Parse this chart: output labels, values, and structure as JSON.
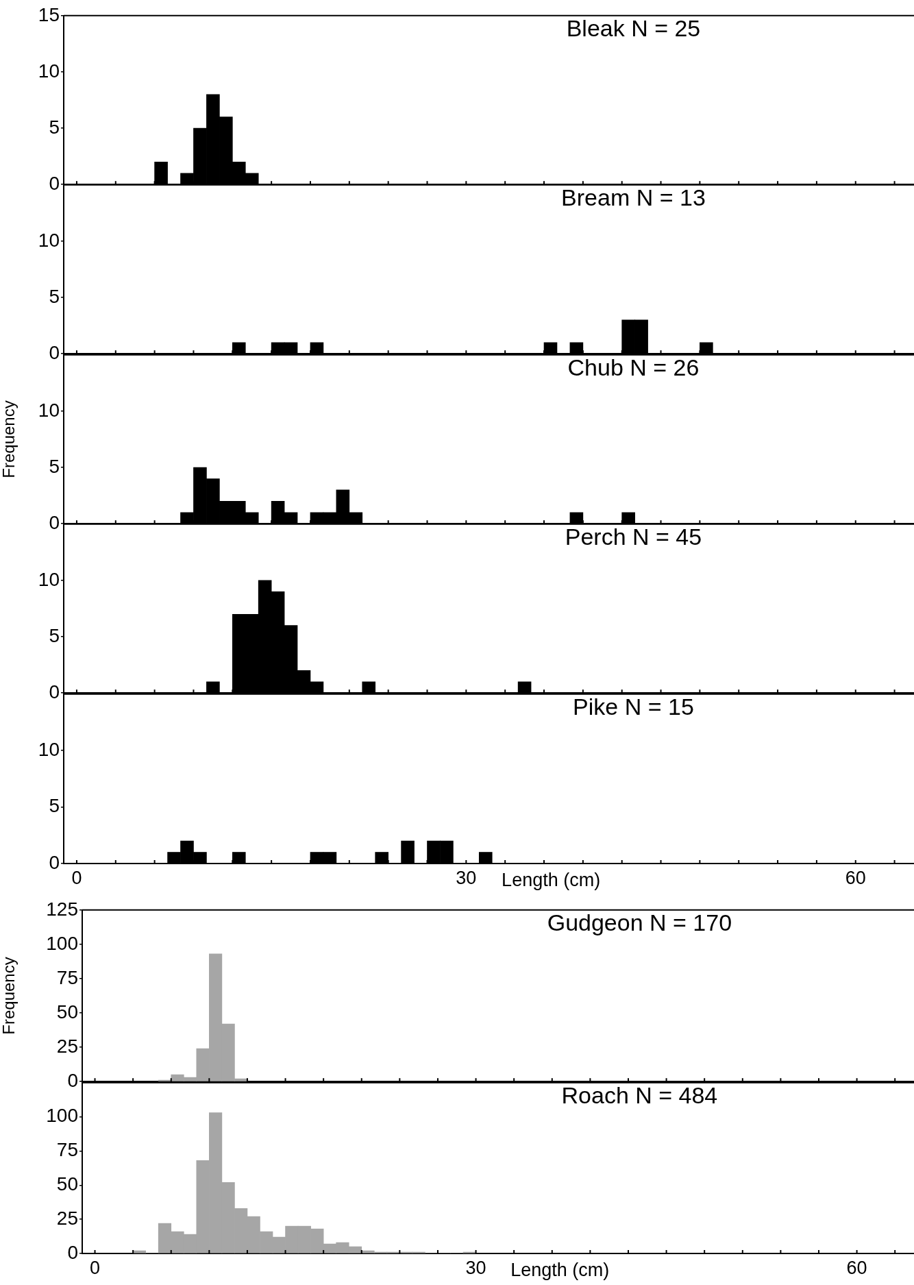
{
  "chart_data": [
    {
      "type": "histogram",
      "title": "Bleak N = 25",
      "bins": [
        6,
        7,
        8,
        9,
        10,
        11,
        12,
        13,
        14
      ],
      "values": [
        2,
        0,
        1,
        5,
        8,
        6,
        2,
        1
      ],
      "color": "#000000",
      "xlim": [
        -1,
        64.5
      ],
      "xticks": [
        0,
        {
          "value": 3,
          "label": null
        },
        {
          "value": 6,
          "label": null
        },
        {
          "value": 9,
          "label": null
        },
        {
          "value": 12,
          "label": null
        },
        {
          "value": 15,
          "label": null
        },
        {
          "value": 18,
          "label": null
        },
        {
          "value": 21,
          "label": null
        },
        {
          "value": 24,
          "label": null
        },
        {
          "value": 27,
          "label": null
        },
        30,
        {
          "value": 33,
          "label": null
        },
        {
          "value": 36,
          "label": null
        },
        {
          "value": 39,
          "label": null
        },
        {
          "value": 42,
          "label": null
        },
        {
          "value": 45,
          "label": null
        },
        {
          "value": 48,
          "label": null
        },
        {
          "value": 51,
          "label": null
        },
        {
          "value": 54,
          "label": null
        },
        {
          "value": 57,
          "label": null
        },
        60,
        {
          "value": 63,
          "label": null
        }
      ],
      "ylim": [
        0,
        15
      ],
      "yticks": [
        0,
        5,
        10,
        15
      ],
      "tick_labels": "y"
    },
    {
      "type": "histogram",
      "title": "Bream N = 13",
      "bins": [
        12,
        13,
        14,
        15,
        16,
        17,
        18,
        19,
        20,
        21,
        22,
        23,
        24,
        25,
        26,
        27,
        28,
        29,
        30,
        31,
        32,
        33,
        34,
        35,
        36,
        37,
        38,
        39,
        40,
        41,
        42,
        43,
        44,
        45,
        46,
        47,
        48,
        49
      ],
      "values": [
        1,
        0,
        0,
        1,
        1,
        0,
        1,
        0,
        0,
        0,
        0,
        0,
        0,
        0,
        0,
        0,
        0,
        0,
        0,
        0,
        0,
        0,
        0,
        0,
        1,
        0,
        1,
        0,
        0,
        0,
        3,
        3,
        0,
        0,
        0,
        0,
        1
      ],
      "color": "#000000",
      "xlim": [
        -1,
        64.5
      ],
      "xticks": [
        0,
        {
          "value": 3,
          "label": null
        },
        {
          "value": 6,
          "label": null
        },
        {
          "value": 9,
          "label": null
        },
        {
          "value": 12,
          "label": null
        },
        {
          "value": 15,
          "label": null
        },
        {
          "value": 18,
          "label": null
        },
        {
          "value": 21,
          "label": null
        },
        {
          "value": 24,
          "label": null
        },
        {
          "value": 27,
          "label": null
        },
        30,
        {
          "value": 33,
          "label": null
        },
        {
          "value": 36,
          "label": null
        },
        {
          "value": 39,
          "label": null
        },
        {
          "value": 42,
          "label": null
        },
        {
          "value": 45,
          "label": null
        },
        {
          "value": 48,
          "label": null
        },
        {
          "value": 51,
          "label": null
        },
        {
          "value": 54,
          "label": null
        },
        {
          "value": 57,
          "label": null
        },
        60,
        {
          "value": 63,
          "label": null
        }
      ],
      "ylim": [
        0,
        15
      ],
      "yticks": [
        0,
        5,
        10
      ],
      "tick_labels": "y"
    },
    {
      "type": "histogram",
      "title": "Chub N = 26",
      "ylabel": "Frequency",
      "bins": [
        8,
        9,
        10,
        11,
        12,
        13,
        14,
        15,
        16,
        17,
        18,
        19,
        20,
        21,
        22,
        23,
        24,
        25,
        26,
        27,
        28,
        29,
        30,
        31,
        32,
        33,
        34,
        35,
        36,
        37,
        38,
        39,
        40,
        41,
        42,
        43
      ],
      "values": [
        1,
        5,
        4,
        2,
        2,
        1,
        0,
        2,
        1,
        0,
        1,
        1,
        3,
        1,
        0,
        0,
        0,
        0,
        0,
        0,
        0,
        0,
        0,
        0,
        0,
        0,
        0,
        0,
        0,
        0,
        1,
        0,
        0,
        0,
        1
      ],
      "color": "#000000",
      "xlim": [
        -1,
        64.5
      ],
      "xticks": [
        0,
        {
          "value": 3,
          "label": null
        },
        {
          "value": 6,
          "label": null
        },
        {
          "value": 9,
          "label": null
        },
        {
          "value": 12,
          "label": null
        },
        {
          "value": 15,
          "label": null
        },
        {
          "value": 18,
          "label": null
        },
        {
          "value": 21,
          "label": null
        },
        {
          "value": 24,
          "label": null
        },
        {
          "value": 27,
          "label": null
        },
        30,
        {
          "value": 33,
          "label": null
        },
        {
          "value": 36,
          "label": null
        },
        {
          "value": 39,
          "label": null
        },
        {
          "value": 42,
          "label": null
        },
        {
          "value": 45,
          "label": null
        },
        {
          "value": 48,
          "label": null
        },
        {
          "value": 51,
          "label": null
        },
        {
          "value": 54,
          "label": null
        },
        {
          "value": 57,
          "label": null
        },
        60,
        {
          "value": 63,
          "label": null
        }
      ],
      "ylim": [
        0,
        15
      ],
      "yticks": [
        0,
        5,
        10
      ],
      "tick_labels": "y"
    },
    {
      "type": "histogram",
      "title": "Perch N = 45",
      "bins": [
        10,
        11,
        12,
        13,
        14,
        15,
        16,
        17,
        18,
        19,
        20,
        21,
        22,
        23,
        24,
        25,
        26,
        27,
        28,
        29,
        30,
        31,
        32,
        33,
        34,
        35
      ],
      "values": [
        1,
        0,
        7,
        7,
        10,
        9,
        6,
        2,
        1,
        0,
        0,
        0,
        1,
        0,
        0,
        0,
        0,
        0,
        0,
        0,
        0,
        0,
        0,
        0,
        1
      ],
      "color": "#000000",
      "xlim": [
        -1,
        64.5
      ],
      "xticks": [
        0,
        {
          "value": 3,
          "label": null
        },
        {
          "value": 6,
          "label": null
        },
        {
          "value": 9,
          "label": null
        },
        {
          "value": 12,
          "label": null
        },
        {
          "value": 15,
          "label": null
        },
        {
          "value": 18,
          "label": null
        },
        {
          "value": 21,
          "label": null
        },
        {
          "value": 24,
          "label": null
        },
        {
          "value": 27,
          "label": null
        },
        30,
        {
          "value": 33,
          "label": null
        },
        {
          "value": 36,
          "label": null
        },
        {
          "value": 39,
          "label": null
        },
        {
          "value": 42,
          "label": null
        },
        {
          "value": 45,
          "label": null
        },
        {
          "value": 48,
          "label": null
        },
        {
          "value": 51,
          "label": null
        },
        {
          "value": 54,
          "label": null
        },
        {
          "value": 57,
          "label": null
        },
        60,
        {
          "value": 63,
          "label": null
        }
      ],
      "ylim": [
        0,
        15
      ],
      "yticks": [
        0,
        5,
        10
      ],
      "tick_labels": "y"
    },
    {
      "type": "histogram",
      "title": "Pike N = 15",
      "xlabel": "Length (cm)",
      "bins": [
        7,
        8,
        9,
        10,
        11,
        12,
        13,
        14,
        15,
        16,
        17,
        18,
        19,
        20,
        21,
        22,
        23,
        24,
        25,
        26,
        27,
        28,
        29,
        30,
        31,
        32
      ],
      "values": [
        1,
        2,
        1,
        0,
        0,
        1,
        0,
        0,
        0,
        0,
        0,
        1,
        1,
        0,
        0,
        0,
        1,
        0,
        2,
        0,
        2,
        2,
        0,
        0,
        1
      ],
      "color": "#000000",
      "xlim": [
        -1,
        64.5
      ],
      "xticks": [
        0,
        {
          "value": 3,
          "label": null
        },
        {
          "value": 6,
          "label": null
        },
        {
          "value": 9,
          "label": null
        },
        {
          "value": 12,
          "label": null
        },
        {
          "value": 15,
          "label": null
        },
        {
          "value": 18,
          "label": null
        },
        {
          "value": 21,
          "label": null
        },
        {
          "value": 24,
          "label": null
        },
        {
          "value": 27,
          "label": null
        },
        30,
        {
          "value": 33,
          "label": null
        },
        {
          "value": 36,
          "label": null
        },
        {
          "value": 39,
          "label": null
        },
        {
          "value": 42,
          "label": null
        },
        {
          "value": 45,
          "label": null
        },
        {
          "value": 48,
          "label": null
        },
        {
          "value": 51,
          "label": null
        },
        {
          "value": 54,
          "label": null
        },
        {
          "value": 57,
          "label": null
        },
        60,
        {
          "value": 63,
          "label": null
        }
      ],
      "ylim": [
        0,
        15
      ],
      "yticks": [
        0,
        5,
        10
      ]
    },
    {
      "type": "histogram",
      "title": "Gudgeon N = 170",
      "ylabel": "Frequency",
      "bins": [
        5,
        6,
        7,
        8,
        9,
        10,
        11,
        12
      ],
      "values": [
        1,
        5,
        3,
        24,
        93,
        42,
        2
      ],
      "color": "#a6a6a6",
      "xlim": [
        -1,
        64.5
      ],
      "xticks": [
        0,
        {
          "value": 3,
          "label": null
        },
        {
          "value": 6,
          "label": null
        },
        {
          "value": 9,
          "label": null
        },
        {
          "value": 12,
          "label": null
        },
        {
          "value": 15,
          "label": null
        },
        {
          "value": 18,
          "label": null
        },
        {
          "value": 21,
          "label": null
        },
        {
          "value": 24,
          "label": null
        },
        {
          "value": 27,
          "label": null
        },
        30,
        {
          "value": 33,
          "label": null
        },
        {
          "value": 36,
          "label": null
        },
        {
          "value": 39,
          "label": null
        },
        {
          "value": 42,
          "label": null
        },
        {
          "value": 45,
          "label": null
        },
        {
          "value": 48,
          "label": null
        },
        {
          "value": 51,
          "label": null
        },
        {
          "value": 54,
          "label": null
        },
        {
          "value": 57,
          "label": null
        },
        60,
        {
          "value": 63,
          "label": null
        }
      ],
      "ylim": [
        0,
        125
      ],
      "yticks": [
        0,
        25,
        50,
        75,
        100,
        125
      ],
      "tick_labels": "y"
    },
    {
      "type": "histogram",
      "title": "Roach N = 484",
      "xlabel": "Length (cm)",
      "bins": [
        3,
        4,
        5,
        6,
        7,
        8,
        9,
        10,
        11,
        12,
        13,
        14,
        15,
        16,
        17,
        18,
        19,
        20,
        21,
        22,
        23,
        24,
        25,
        26,
        27,
        28,
        29,
        30
      ],
      "values": [
        2,
        0,
        22,
        16,
        14,
        68,
        103,
        52,
        33,
        27,
        16,
        12,
        20,
        20,
        18,
        7,
        8,
        5,
        2,
        1,
        1,
        1,
        1,
        0,
        0,
        0,
        1
      ],
      "color": "#a6a6a6",
      "xlim": [
        -1,
        64.5
      ],
      "xticks": [
        0,
        {
          "value": 3,
          "label": null
        },
        {
          "value": 6,
          "label": null
        },
        {
          "value": 9,
          "label": null
        },
        {
          "value": 12,
          "label": null
        },
        {
          "value": 15,
          "label": null
        },
        {
          "value": 18,
          "label": null
        },
        {
          "value": 21,
          "label": null
        },
        {
          "value": 24,
          "label": null
        },
        {
          "value": 27,
          "label": null
        },
        30,
        {
          "value": 33,
          "label": null
        },
        {
          "value": 36,
          "label": null
        },
        {
          "value": 39,
          "label": null
        },
        {
          "value": 42,
          "label": null
        },
        {
          "value": 45,
          "label": null
        },
        {
          "value": 48,
          "label": null
        },
        {
          "value": 51,
          "label": null
        },
        {
          "value": 54,
          "label": null
        },
        {
          "value": 57,
          "label": null
        },
        60,
        {
          "value": 63,
          "label": null
        }
      ],
      "ylim": [
        0,
        125
      ],
      "yticks": [
        0,
        25,
        50,
        75,
        100
      ]
    }
  ]
}
